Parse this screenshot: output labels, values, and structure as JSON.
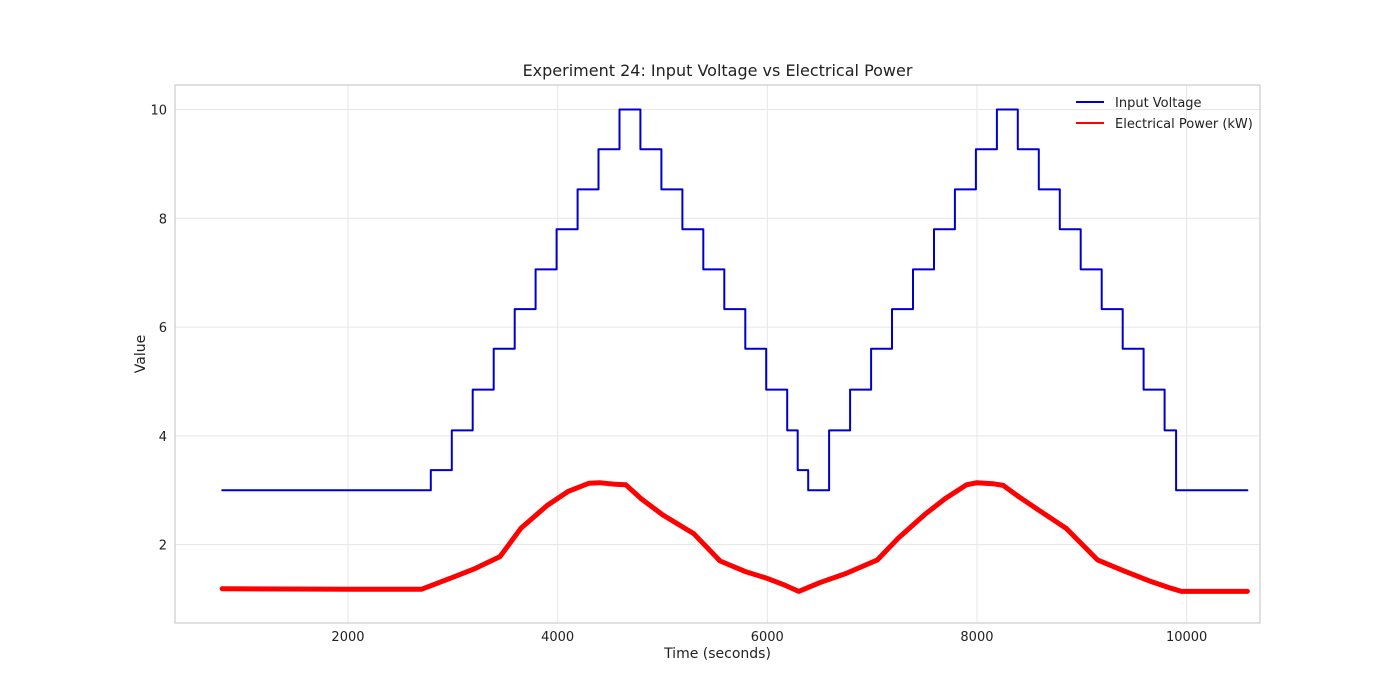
{
  "chart_data": {
    "type": "line",
    "title": "Experiment 24: Input Voltage vs Electrical Power",
    "xlabel": "Time (seconds)",
    "ylabel": "Value",
    "xlim": [
      350,
      10700
    ],
    "ylim": [
      0.56,
      10.45
    ],
    "xticks": [
      2000,
      4000,
      6000,
      8000,
      10000
    ],
    "yticks": [
      2,
      4,
      6,
      8,
      10
    ],
    "grid": true,
    "legend_position": "top-right",
    "series": [
      {
        "name": "Input Voltage",
        "color": "#0000cc",
        "step": "post",
        "x": [
          800,
          2790,
          2990,
          3190,
          3390,
          3590,
          3790,
          3990,
          4190,
          4390,
          4590,
          4790,
          4990,
          5190,
          5390,
          5590,
          5790,
          5990,
          6190,
          6290,
          6390,
          6590,
          6790,
          6990,
          7190,
          7390,
          7590,
          7790,
          7990,
          8190,
          8390,
          8590,
          8790,
          8990,
          9190,
          9390,
          9590,
          9790,
          9900,
          10580
        ],
        "values": [
          3.0,
          3.37,
          4.1,
          4.85,
          5.6,
          6.33,
          7.06,
          7.8,
          8.53,
          9.27,
          10.0,
          9.27,
          8.53,
          7.8,
          7.06,
          6.33,
          5.6,
          4.85,
          4.1,
          3.37,
          3.0,
          4.1,
          4.85,
          5.6,
          6.33,
          7.06,
          7.8,
          8.53,
          9.27,
          10.0,
          9.27,
          8.53,
          7.8,
          7.06,
          6.33,
          5.6,
          4.85,
          4.1,
          3.0,
          3.0
        ]
      },
      {
        "name": "Electrical Power (kW)",
        "color": "#ff0000",
        "x": [
          800,
          2000,
          2700,
          3000,
          3200,
          3450,
          3650,
          3900,
          4100,
          4300,
          4400,
          4550,
          4650,
          4800,
          5000,
          5300,
          5550,
          5800,
          6000,
          6150,
          6300,
          6500,
          6750,
          7050,
          7250,
          7500,
          7700,
          7900,
          8000,
          8150,
          8250,
          8400,
          8600,
          8850,
          9150,
          9400,
          9650,
          9850,
          9950,
          10580
        ],
        "values": [
          1.19,
          1.18,
          1.18,
          1.4,
          1.55,
          1.78,
          2.3,
          2.72,
          2.98,
          3.13,
          3.14,
          3.11,
          3.1,
          2.84,
          2.55,
          2.2,
          1.7,
          1.5,
          1.38,
          1.27,
          1.14,
          1.3,
          1.47,
          1.72,
          2.12,
          2.55,
          2.85,
          3.1,
          3.14,
          3.12,
          3.09,
          2.88,
          2.62,
          2.3,
          1.72,
          1.52,
          1.33,
          1.2,
          1.14,
          1.14
        ]
      }
    ]
  }
}
